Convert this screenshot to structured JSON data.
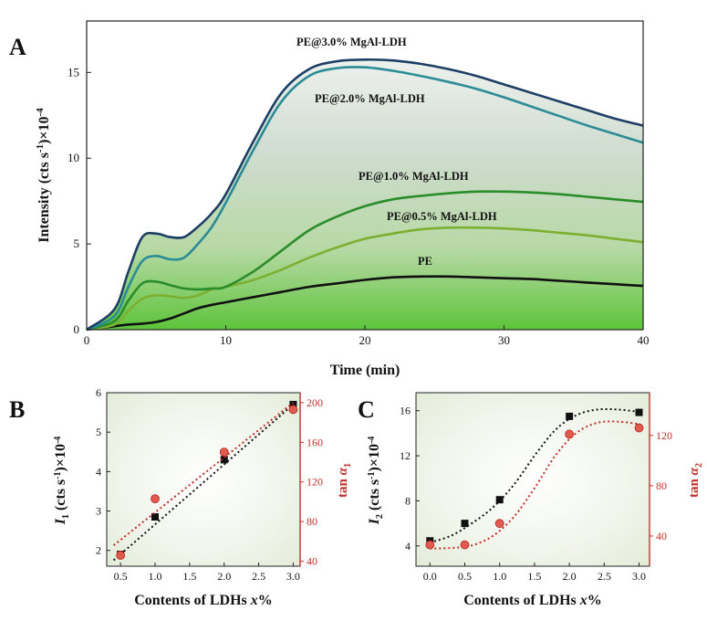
{
  "panels": {
    "a": "A",
    "b": "B",
    "c": "C"
  },
  "colors": {
    "pe": "#111111",
    "pe05": "#7db032",
    "pe10": "#2a8c2a",
    "pe20": "#2b8c95",
    "pe30": "#1d3f66",
    "black_marker": "#111111",
    "red": "#c0302a",
    "red_marker": "#e05a4f"
  },
  "chart_data": [
    {
      "type": "line",
      "title": "",
      "xlabel": "Time (min)",
      "ylabel_main": "Intensity (cts s",
      "ylabel_sup1": "-1",
      "ylabel_mid": ")×10",
      "ylabel_sup2": "-4",
      "xlim": [
        0,
        40
      ],
      "ylim": [
        0,
        18
      ],
      "xticks": [
        "0",
        "10",
        "20",
        "30",
        "40"
      ],
      "yticks": [
        "0",
        "5",
        "10",
        "15"
      ],
      "series": [
        {
          "name": "PE",
          "label": "PE",
          "x": [
            0,
            2,
            3,
            4,
            5,
            6,
            7,
            8,
            9,
            10,
            12,
            14,
            16,
            18,
            20,
            22,
            24,
            26,
            28,
            30,
            32,
            34,
            36,
            38,
            40
          ],
          "y": [
            0,
            0.2,
            0.3,
            0.35,
            0.45,
            0.65,
            0.95,
            1.25,
            1.45,
            1.6,
            1.9,
            2.2,
            2.5,
            2.7,
            2.9,
            3.05,
            3.1,
            3.1,
            3.05,
            3.0,
            2.95,
            2.85,
            2.75,
            2.65,
            2.55
          ]
        },
        {
          "name": "PE@0.5% MgAl-LDH",
          "label": "PE@0.5% MgAl-LDH",
          "x": [
            0,
            2,
            3,
            4,
            5,
            6,
            7,
            8,
            9,
            10,
            12,
            14,
            16,
            18,
            20,
            22,
            24,
            26,
            28,
            30,
            32,
            34,
            36,
            38,
            40
          ],
          "y": [
            0,
            0.3,
            1.1,
            1.8,
            2.0,
            1.95,
            1.85,
            2.0,
            2.35,
            2.5,
            2.9,
            3.5,
            4.2,
            4.8,
            5.3,
            5.6,
            5.85,
            5.95,
            5.95,
            5.9,
            5.8,
            5.65,
            5.5,
            5.3,
            5.1
          ]
        },
        {
          "name": "PE@1.0% MgAl-LDH",
          "label": "PE@1.0% MgAl-LDH",
          "x": [
            0,
            2,
            3,
            4,
            5,
            6,
            7,
            8,
            9,
            10,
            12,
            14,
            16,
            18,
            20,
            22,
            24,
            26,
            28,
            30,
            32,
            34,
            36,
            38,
            40
          ],
          "y": [
            0,
            0.5,
            1.7,
            2.7,
            2.8,
            2.6,
            2.4,
            2.35,
            2.4,
            2.5,
            3.4,
            4.6,
            5.8,
            6.6,
            7.2,
            7.6,
            7.8,
            7.95,
            8.05,
            8.05,
            8.0,
            7.9,
            7.75,
            7.6,
            7.45
          ]
        },
        {
          "name": "PE@2.0% MgAl-LDH",
          "label": "PE@2.0% MgAl-LDH",
          "x": [
            0,
            2,
            3,
            4,
            5,
            6,
            7,
            8,
            9,
            10,
            12,
            14,
            16,
            18,
            20,
            22,
            24,
            26,
            28,
            30,
            32,
            34,
            36,
            38,
            40
          ],
          "y": [
            0,
            0.8,
            2.5,
            4.0,
            4.3,
            4.1,
            4.2,
            5.0,
            6.0,
            7.4,
            10.5,
            13.3,
            14.8,
            15.25,
            15.3,
            15.1,
            14.8,
            14.45,
            14.05,
            13.55,
            13.0,
            12.45,
            11.9,
            11.4,
            10.9
          ]
        },
        {
          "name": "PE@3.0% MgAl-LDH",
          "label": "PE@3.0% MgAl-LDH",
          "x": [
            0,
            2,
            3,
            4,
            5,
            6,
            7,
            8,
            9,
            10,
            12,
            14,
            16,
            18,
            20,
            22,
            24,
            26,
            28,
            30,
            32,
            34,
            36,
            38,
            40
          ],
          "y": [
            0,
            1.2,
            3.4,
            5.4,
            5.6,
            5.4,
            5.4,
            6.0,
            6.8,
            7.9,
            11.0,
            13.8,
            15.2,
            15.65,
            15.75,
            15.7,
            15.5,
            15.2,
            14.8,
            14.3,
            13.8,
            13.3,
            12.8,
            12.3,
            11.9
          ]
        }
      ]
    },
    {
      "type": "scatter",
      "title": "",
      "xlabel_main": "Contents of LDHs ",
      "xlabel_var": "x",
      "xlabel_end": "%",
      "ylabel_left_var": "I",
      "ylabel_left_sub": "1",
      "ylabel_left_main": " (cts s",
      "ylabel_left_sup1": "-1",
      "ylabel_left_mid": ")×10",
      "ylabel_left_sup2": "-4",
      "ylabel_right_main": "tan ",
      "ylabel_right_var": "α",
      "ylabel_right_sub": "1",
      "xlim": [
        0.3,
        3.1
      ],
      "ylim_left": [
        1.6,
        6
      ],
      "ylim_right": [
        35,
        210
      ],
      "xticks": [
        "0.5",
        "1.0",
        "1.5",
        "2.0",
        "2.5",
        "3.0"
      ],
      "yticks_left": [
        "2",
        "3",
        "4",
        "5",
        "6"
      ],
      "yticks_right": [
        "40",
        "80",
        "120",
        "160",
        "200"
      ],
      "series": [
        {
          "name": "I1",
          "axis": "left",
          "x": [
            0.5,
            1.0,
            2.0,
            3.0
          ],
          "y": [
            1.9,
            2.85,
            4.3,
            5.7
          ],
          "fit": [
            [
              0.4,
              1.75
            ],
            [
              3.0,
              5.7
            ]
          ]
        },
        {
          "name": "tan a1",
          "axis": "right",
          "x": [
            0.5,
            1.0,
            2.0,
            3.0
          ],
          "y": [
            46,
            103,
            150,
            193
          ],
          "fit": [
            [
              0.4,
              56
            ],
            [
              3.0,
              200
            ]
          ]
        }
      ]
    },
    {
      "type": "scatter",
      "title": "",
      "xlabel_main": "Contents of LDHs ",
      "xlabel_var": "x",
      "xlabel_end": "%",
      "ylabel_left_var": "I",
      "ylabel_left_sub": "2",
      "ylabel_left_main": " (cts s",
      "ylabel_left_sup1": "-1",
      "ylabel_left_mid": ")×10",
      "ylabel_left_sup2": "-4",
      "ylabel_right_main": "tan ",
      "ylabel_right_var": "α",
      "ylabel_right_sub": "2",
      "xlim": [
        -0.2,
        3.15
      ],
      "ylim_left": [
        2.2,
        17.6
      ],
      "ylim_right": [
        16,
        154
      ],
      "xticks": [
        "0.0",
        "0.5",
        "1.0",
        "1.5",
        "2.0",
        "2.5",
        "3.0"
      ],
      "yticks_left": [
        "4",
        "8",
        "12",
        "16"
      ],
      "yticks_right": [
        "40",
        "80",
        "120"
      ],
      "series": [
        {
          "name": "I2",
          "axis": "left",
          "x": [
            0.0,
            0.5,
            1.0,
            2.0,
            3.0
          ],
          "y": [
            4.45,
            6.0,
            8.1,
            15.5,
            15.85
          ],
          "fit": [
            [
              0.0,
              4.3
            ],
            [
              0.3,
              4.9
            ],
            [
              0.6,
              6.0
            ],
            [
              0.9,
              7.4
            ],
            [
              1.2,
              9.4
            ],
            [
              1.5,
              12.0
            ],
            [
              1.8,
              14.3
            ],
            [
              2.1,
              15.6
            ],
            [
              2.4,
              16.1
            ],
            [
              2.7,
              16.1
            ],
            [
              3.0,
              15.9
            ]
          ]
        },
        {
          "name": "tan a2",
          "axis": "right",
          "x": [
            0.0,
            0.5,
            1.0,
            2.0,
            3.0
          ],
          "y": [
            33,
            33,
            50,
            121,
            126
          ],
          "fit": [
            [
              0.0,
              30
            ],
            [
              0.3,
              30.5
            ],
            [
              0.6,
              32.5
            ],
            [
              0.9,
              40
            ],
            [
              1.2,
              55
            ],
            [
              1.5,
              78
            ],
            [
              1.8,
              104
            ],
            [
              2.1,
              122
            ],
            [
              2.4,
              130
            ],
            [
              2.7,
              131
            ],
            [
              3.0,
              129
            ]
          ]
        }
      ]
    }
  ]
}
